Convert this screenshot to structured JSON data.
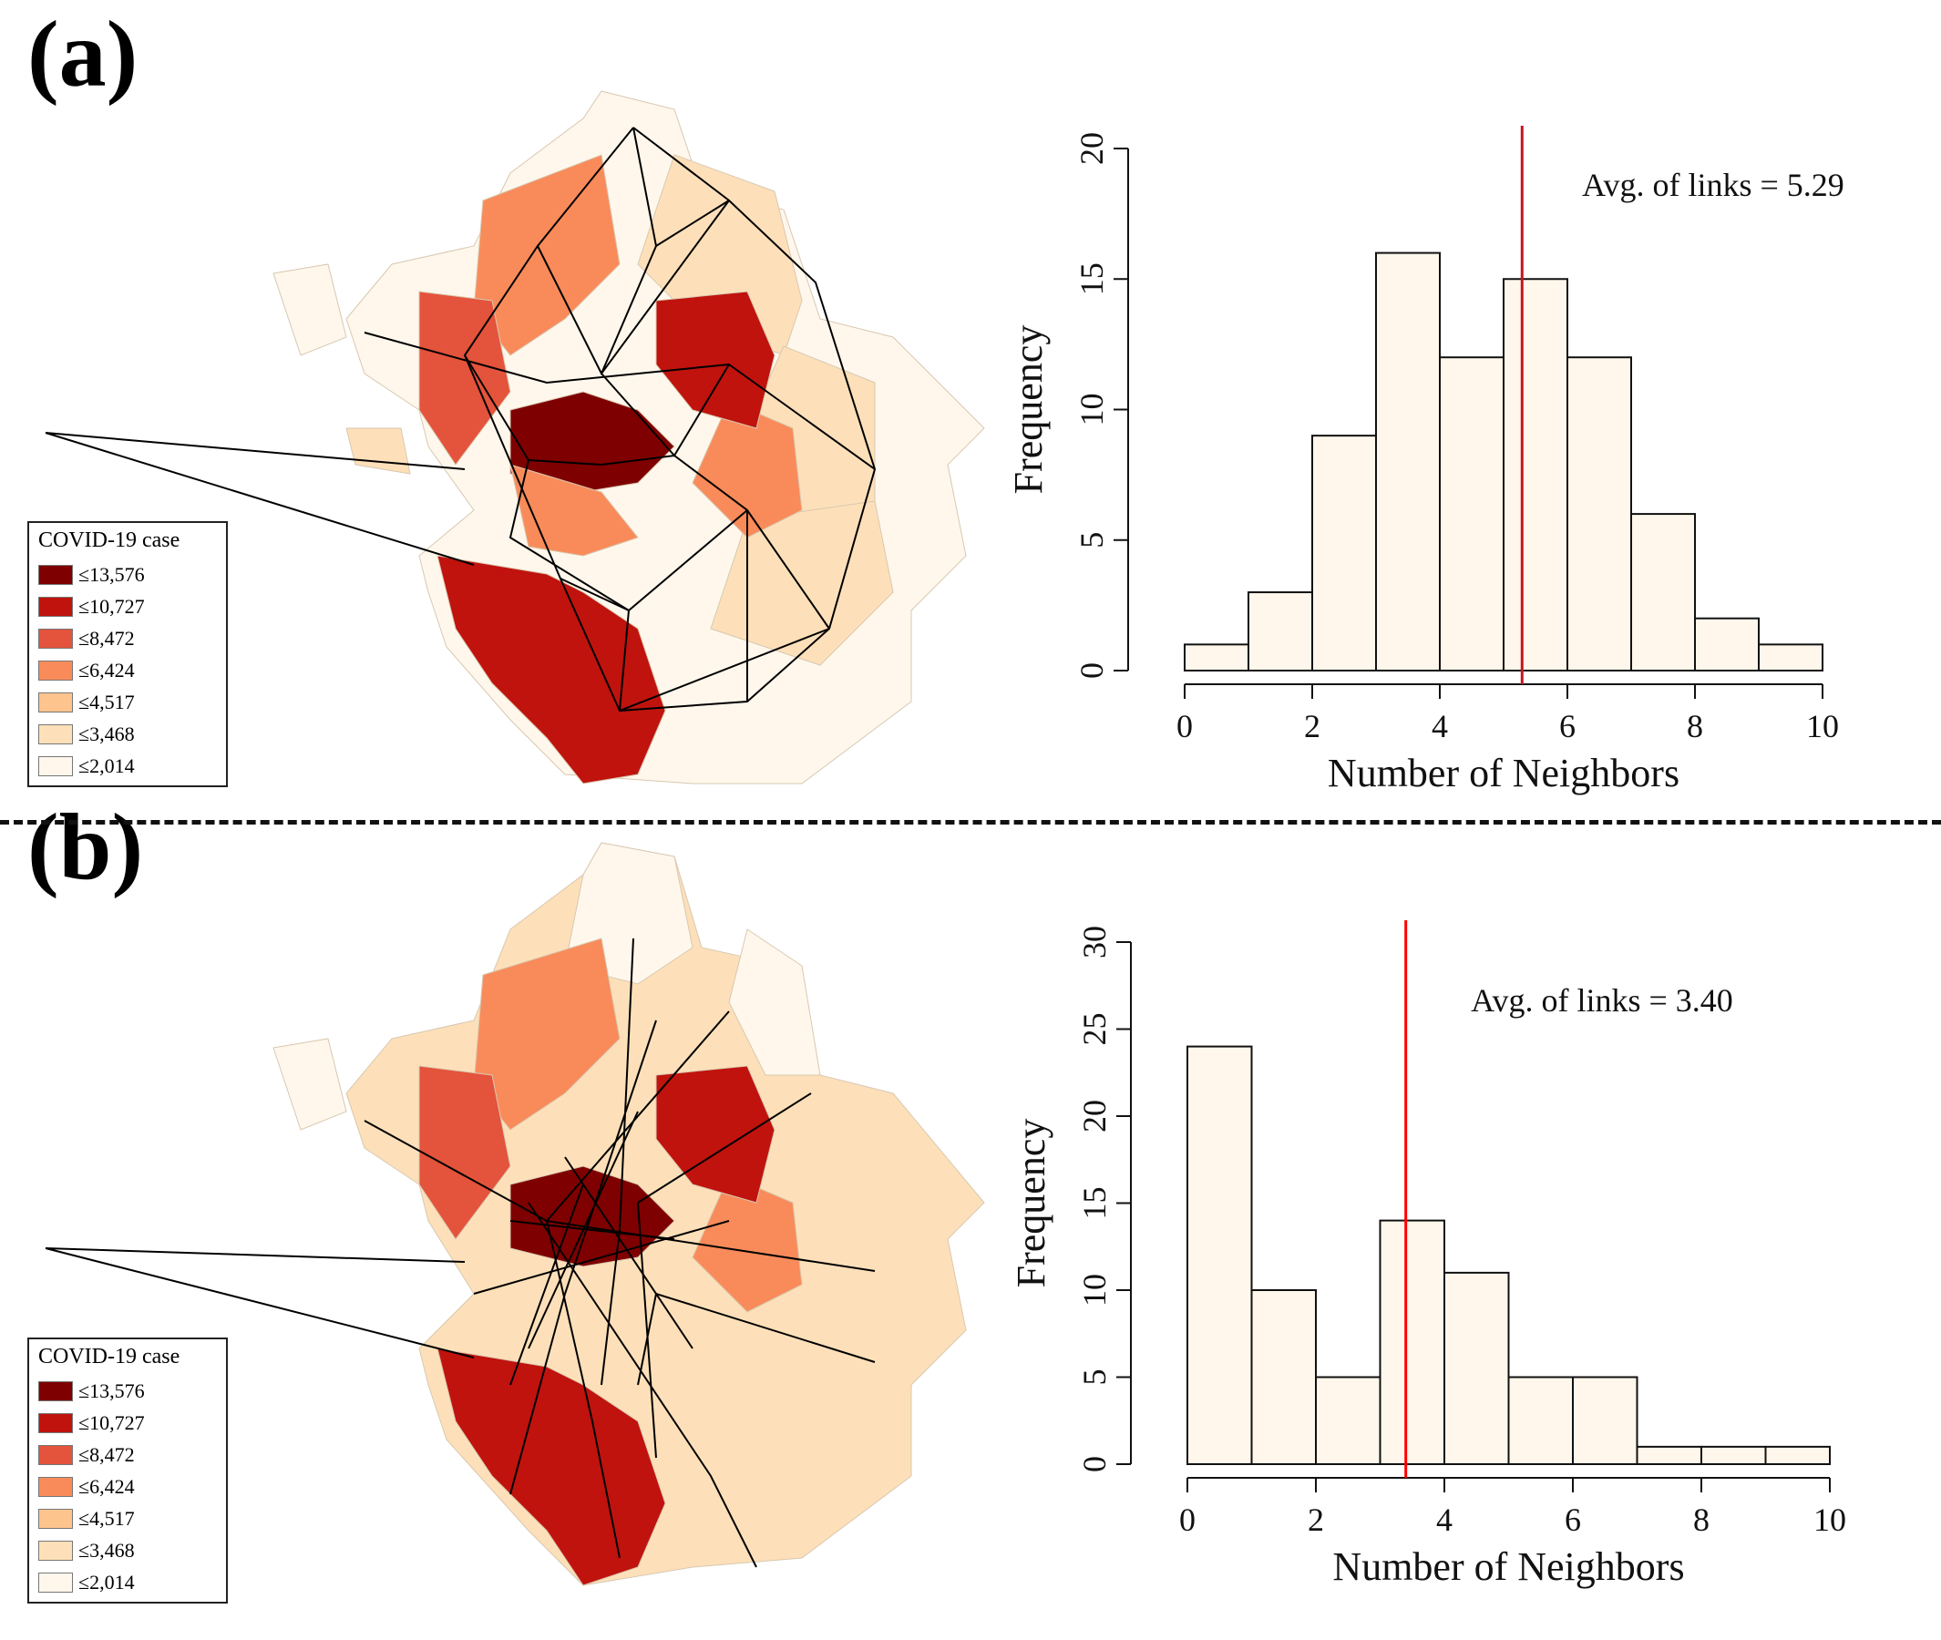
{
  "panels": [
    {
      "label": "(a)",
      "legend": {
        "title": "COVID-19 case",
        "items": [
          {
            "label": "≤13,576",
            "color": "#7F0000"
          },
          {
            "label": "≤10,727",
            "color": "#C0130E"
          },
          {
            "label": "≤8,472",
            "color": "#E4533B"
          },
          {
            "label": "≤6,424",
            "color": "#F98B5A"
          },
          {
            "label": "≤4,517",
            "color": "#FDC48E"
          },
          {
            "label": "≤3,468",
            "color": "#FDE0B9"
          },
          {
            "label": "≤2,014",
            "color": "#FFF7EC"
          }
        ]
      }
    },
    {
      "label": "(b)",
      "legend": {
        "title": "COVID-19 case",
        "items": [
          {
            "label": "≤13,576",
            "color": "#7F0000"
          },
          {
            "label": "≤10,727",
            "color": "#C0130E"
          },
          {
            "label": "≤8,472",
            "color": "#E4533B"
          },
          {
            "label": "≤6,424",
            "color": "#F98B5A"
          },
          {
            "label": "≤4,517",
            "color": "#FDC48E"
          },
          {
            "label": "≤3,468",
            "color": "#FDE0B9"
          },
          {
            "label": "≤2,014",
            "color": "#FFF7EC"
          }
        ]
      }
    }
  ],
  "chart_data": [
    {
      "type": "bar",
      "title": "",
      "xlabel": "Number of Neighbors",
      "ylabel": "Frequency",
      "bins": [
        0,
        1,
        2,
        3,
        4,
        5,
        6,
        7,
        8,
        9,
        10
      ],
      "values": [
        1,
        3,
        9,
        16,
        12,
        15,
        12,
        6,
        2,
        1
      ],
      "xlim": [
        0,
        10
      ],
      "ylim": [
        0,
        20
      ],
      "xticks": [
        "0",
        "2",
        "4",
        "6",
        "8",
        "10"
      ],
      "yticks": [
        "0",
        "5",
        "10",
        "15",
        "20"
      ],
      "mean_line": 5.29,
      "annotation": "Avg. of links = 5.29",
      "bar_color": "#FFF7EC",
      "line_color": "#C8141E"
    },
    {
      "type": "bar",
      "title": "",
      "xlabel": "Number of Neighbors",
      "ylabel": "Frequency",
      "bins": [
        0,
        1,
        2,
        3,
        4,
        5,
        6,
        7,
        8,
        9,
        10
      ],
      "values": [
        24,
        10,
        5,
        14,
        11,
        5,
        5,
        1,
        1,
        1
      ],
      "xlim": [
        0,
        10
      ],
      "ylim": [
        0,
        30
      ],
      "xticks": [
        "0",
        "2",
        "4",
        "6",
        "8",
        "10"
      ],
      "yticks": [
        "0",
        "5",
        "10",
        "15",
        "20",
        "25",
        "30"
      ],
      "mean_line": 3.4,
      "annotation": "Avg. of links = 3.40",
      "bar_color": "#FFF7EC",
      "line_color": "#FF0000"
    }
  ]
}
